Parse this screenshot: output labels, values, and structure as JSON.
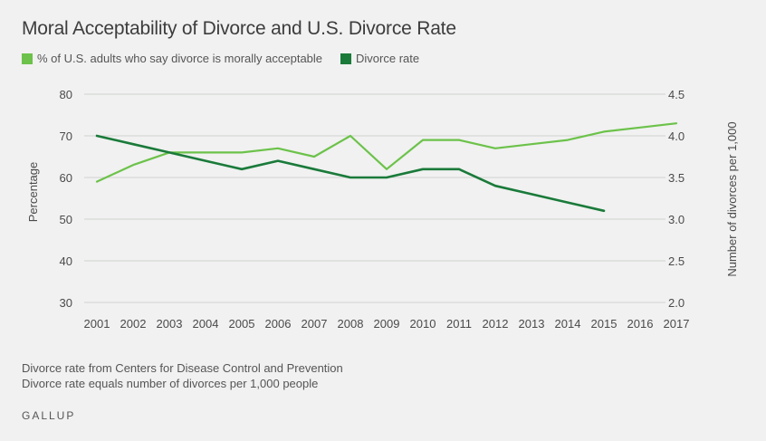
{
  "chart_data": {
    "type": "line",
    "title": "Moral Acceptability of Divorce and U.S. Divorce Rate",
    "categories": [
      "2001",
      "2002",
      "2003",
      "2004",
      "2005",
      "2006",
      "2007",
      "2008",
      "2009",
      "2010",
      "2011",
      "2012",
      "2013",
      "2014",
      "2015",
      "2016",
      "2017"
    ],
    "ylabel_left": "Percentage",
    "ylabel_right": "Number of divorces per 1,000",
    "yticks_left": [
      "80",
      "70",
      "60",
      "50",
      "40",
      "30"
    ],
    "yticks_right": [
      "4.5",
      "4.0",
      "3.5",
      "3.0",
      "2.5",
      "2.0"
    ],
    "ylim_left": [
      30,
      80
    ],
    "ylim_right": [
      2.0,
      4.5
    ],
    "grid": true,
    "legend_position": "top-left",
    "series": [
      {
        "name": "% of U.S. adults who say divorce is morally acceptable",
        "axis": "left",
        "color": "#6cc24a",
        "values": [
          59,
          63,
          66,
          66,
          66,
          67,
          65,
          70,
          62,
          69,
          69,
          67,
          68,
          69,
          71,
          72,
          73
        ]
      },
      {
        "name": "Divorce rate",
        "axis": "right",
        "color": "#1a7a3a",
        "values": [
          4.0,
          3.9,
          3.8,
          3.7,
          3.6,
          3.7,
          3.6,
          3.5,
          3.5,
          3.6,
          3.6,
          3.4,
          3.3,
          3.2,
          3.1,
          null,
          null
        ]
      }
    ]
  },
  "notes": [
    "Divorce rate from Centers for Disease Control and Prevention",
    "Divorce rate equals number of divorces per 1,000 people"
  ],
  "brand": "GALLUP"
}
